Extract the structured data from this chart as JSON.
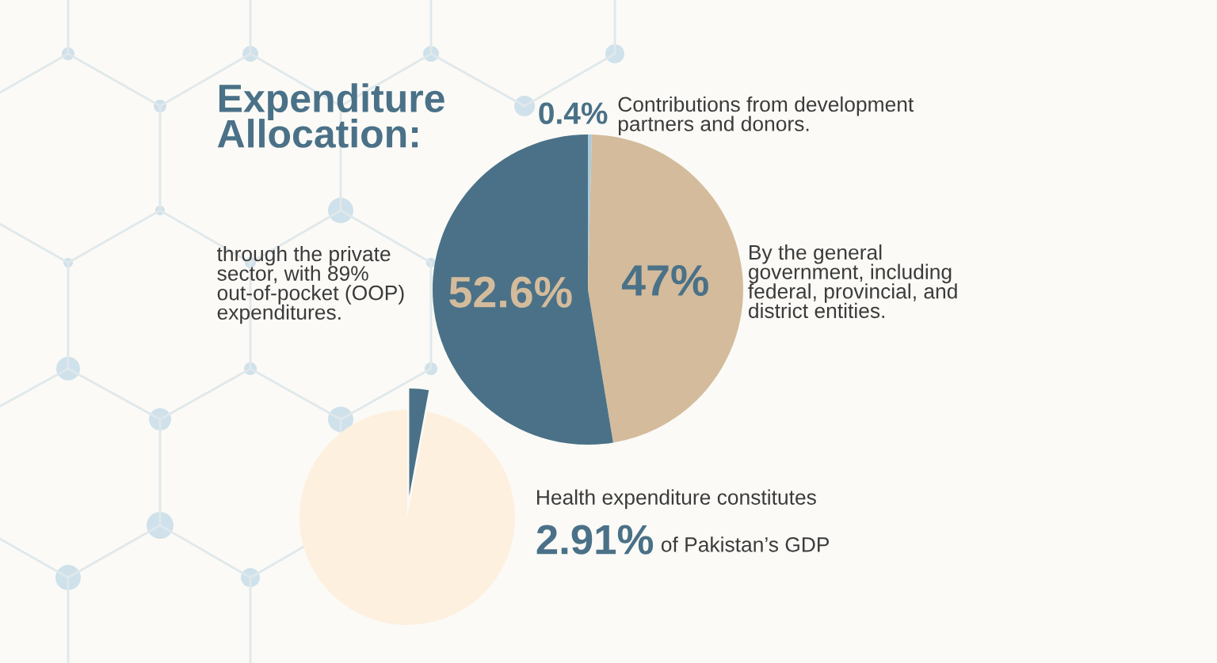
{
  "chart_data": [
    {
      "type": "pie",
      "title": "Expenditure\nAllocation:",
      "categories": [
        "Contributions from development\npartners and donors.",
        "By the general\ngovernment, including\nfederal, provincial, and\ndistrict entities.",
        "through the private\nsector, with 89%\nout-of-pocket (OOP)\nexpenditures."
      ],
      "values": [
        0.4,
        47,
        52.6
      ],
      "colors": [
        "#a9cbdc",
        "#d3bb9c",
        "#4a7187"
      ],
      "value_labels": [
        "0.4%",
        "47%",
        "52.6%"
      ]
    },
    {
      "type": "pie",
      "categories": [
        null,
        null
      ],
      "values": [
        2.91,
        97.09
      ],
      "colors": [
        "#4a7187",
        "#fdf0df"
      ],
      "annotations": [
        "Health expenditure constitutes",
        "2.91%",
        "of Pakistan’s GDP"
      ]
    }
  ]
}
